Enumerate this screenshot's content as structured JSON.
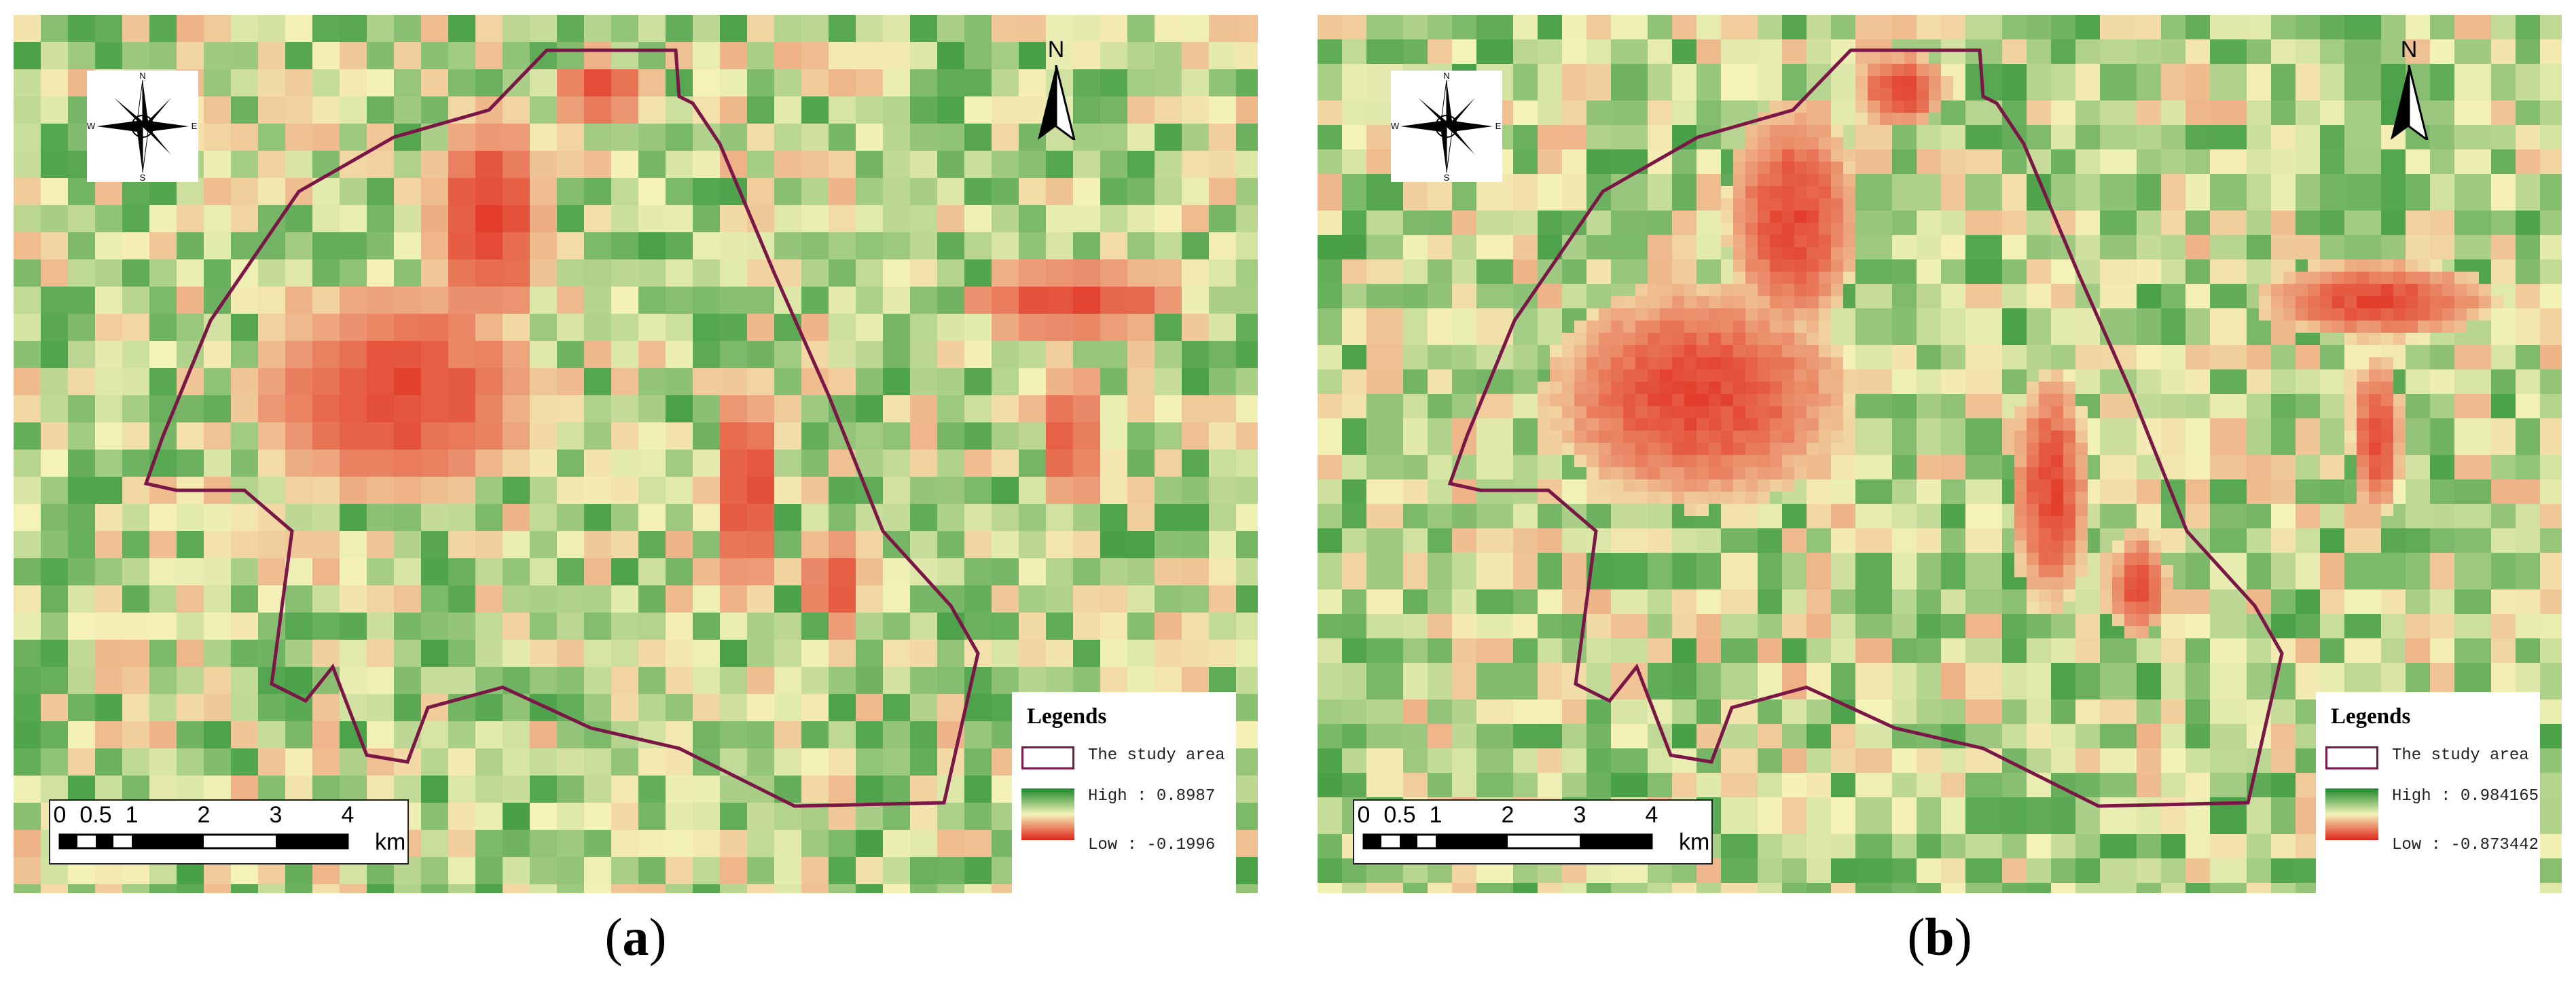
{
  "panels": [
    {
      "id": "a",
      "caption_letter": "a",
      "legend": {
        "title": "Legends",
        "study_area_label": "The study area",
        "high_label": "High : 0.8987",
        "low_label": "Low : -0.1996"
      },
      "compass": {
        "labels": [
          "N",
          "S",
          "W",
          "E"
        ]
      },
      "north_label": "N",
      "scale": {
        "ticks": [
          "0",
          "0.5",
          "1",
          "2",
          "3",
          "4"
        ],
        "unit": "km"
      },
      "colors": {
        "high": "#1a8a2a",
        "mid": "#f4f2b8",
        "low": "#e02418",
        "boundary": "#7a1746"
      }
    },
    {
      "id": "b",
      "caption_letter": "b",
      "legend": {
        "title": "Legends",
        "study_area_label": "The study area",
        "high_label": "High : 0.984165",
        "low_label": "Low : -0.873442"
      },
      "compass": {
        "labels": [
          "N",
          "S",
          "W",
          "E"
        ]
      },
      "north_label": "N",
      "scale": {
        "ticks": [
          "0",
          "0.5",
          "1",
          "2",
          "3",
          "4"
        ],
        "unit": "km"
      },
      "colors": {
        "high": "#1a8a2a",
        "mid": "#f4f2b8",
        "low": "#e02418",
        "boundary": "#7a1746"
      }
    }
  ]
}
